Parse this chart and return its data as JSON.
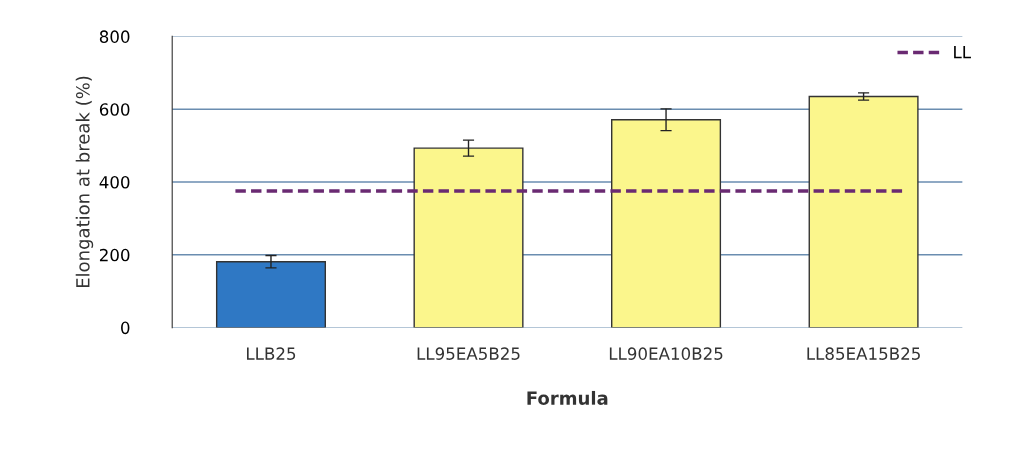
{
  "chart_data": {
    "type": "bar",
    "xlabel": "Formula",
    "ylabel": "Elongation at break (%)",
    "categories": [
      "LLB25",
      "LL95EA5B25",
      "LL90EA10B25",
      "LL85EA15B25"
    ],
    "values": [
      181,
      493,
      571,
      635
    ],
    "errors": [
      17,
      22,
      30,
      10
    ],
    "colors": [
      "#2f78c4",
      "#fbf68c",
      "#fbf68c",
      "#fbf68c"
    ],
    "ylim": [
      0,
      800
    ],
    "yticks": [
      0,
      200,
      400,
      600,
      800
    ],
    "grid": "y",
    "ref_lines": [
      {
        "axis": "y",
        "value": 375,
        "label": "LL",
        "color": "#6a2a72",
        "line_style": "dashed"
      }
    ],
    "legend": "top right"
  }
}
